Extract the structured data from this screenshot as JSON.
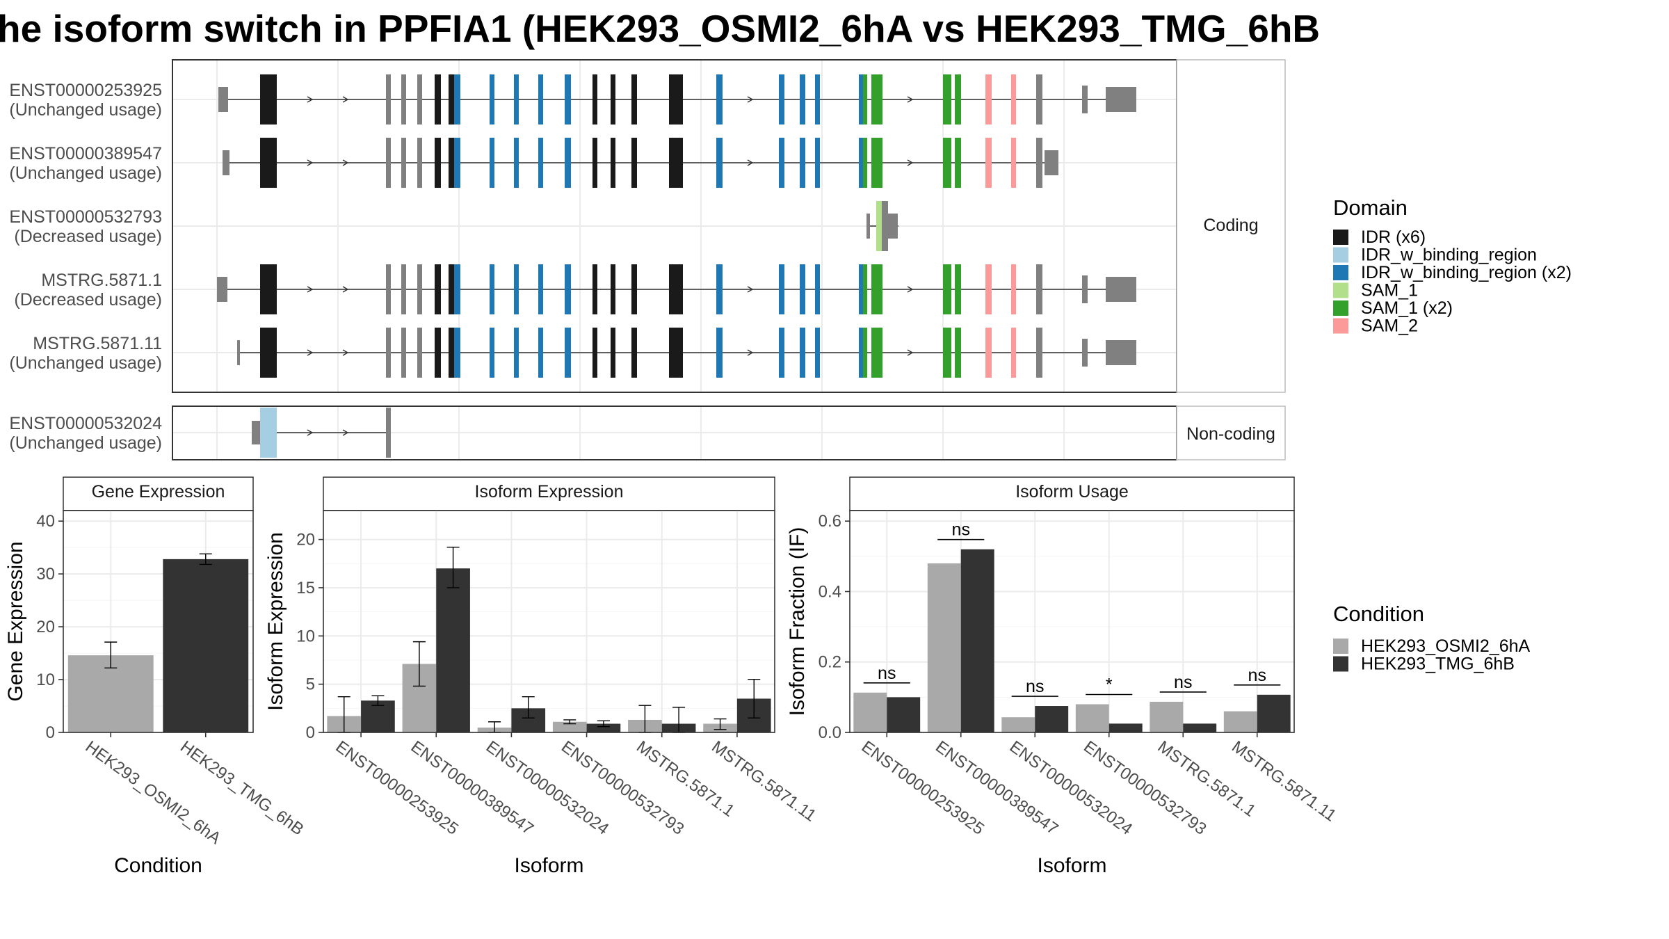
{
  "title": "he isoform switch in PPFIA1 (HEK293_OSMI2_6hA vs HEK293_TMG_6hB",
  "colors": {
    "IDR": "#1a1a1a",
    "IDR_w_binding_region": "#a6cee3",
    "IDR_w_binding_region_x2": "#1f78b4",
    "SAM_1": "#b2df8a",
    "SAM_1_x2": "#33a02c",
    "SAM_2": "#fb9a99",
    "utr": "#808080",
    "cond_a": "#a9a9a9",
    "cond_b": "#333333"
  },
  "structure": {
    "facets": [
      "Coding",
      "Non-coding"
    ],
    "transcripts": [
      {
        "id": "ENST00000253925",
        "usage": "(Unchanged usage)",
        "facet": "Coding"
      },
      {
        "id": "ENST00000389547",
        "usage": "(Unchanged usage)",
        "facet": "Coding"
      },
      {
        "id": "ENST00000532793",
        "usage": "(Decreased usage)",
        "facet": "Coding"
      },
      {
        "id": "MSTRG.5871.1",
        "usage": "(Decreased usage)",
        "facet": "Coding"
      },
      {
        "id": "MSTRG.5871.11",
        "usage": "(Unchanged usage)",
        "facet": "Coding"
      },
      {
        "id": "ENST00000532024",
        "usage": "(Unchanged usage)",
        "facet": "Non-coding"
      }
    ]
  },
  "legend_domain": {
    "title": "Domain",
    "items": [
      {
        "label": "IDR (x6)",
        "color_key": "IDR"
      },
      {
        "label": "IDR_w_binding_region",
        "color_key": "IDR_w_binding_region"
      },
      {
        "label": "IDR_w_binding_region (x2)",
        "color_key": "IDR_w_binding_region_x2"
      },
      {
        "label": "SAM_1",
        "color_key": "SAM_1"
      },
      {
        "label": "SAM_1 (x2)",
        "color_key": "SAM_1_x2"
      },
      {
        "label": "SAM_2",
        "color_key": "SAM_2"
      }
    ]
  },
  "legend_condition": {
    "title": "Condition",
    "items": [
      {
        "label": "HEK293_OSMI2_6hA",
        "color_key": "cond_a"
      },
      {
        "label": "HEK293_TMG_6hB",
        "color_key": "cond_b"
      }
    ]
  },
  "chart_data": [
    {
      "type": "bar",
      "title": "Gene Expression",
      "xlabel": "Condition",
      "ylabel": "Gene Expression",
      "ylim": [
        0,
        42
      ],
      "yticks": [
        0,
        10,
        20,
        30,
        40
      ],
      "categories": [
        "HEK293_OSMI2_6hA",
        "HEK293_TMG_6hB"
      ],
      "values": [
        14.6,
        32.8
      ],
      "err_low": [
        12.2,
        31.8
      ],
      "err_high": [
        17.1,
        33.8
      ]
    },
    {
      "type": "bar",
      "title": "Isoform Expression",
      "xlabel": "Isoform",
      "ylabel": "Isoform Expression",
      "ylim": [
        0,
        23
      ],
      "yticks": [
        0,
        5,
        10,
        15,
        20
      ],
      "categories": [
        "ENST00000253925",
        "ENST00000389547",
        "ENST00000532024",
        "ENST00000532793",
        "MSTRG.5871.1",
        "MSTRG.5871.11"
      ],
      "series": [
        {
          "name": "HEK293_OSMI2_6hA",
          "values": [
            1.7,
            7.1,
            0.5,
            1.1,
            1.3,
            0.9
          ],
          "err_low": [
            0.0,
            4.8,
            0.0,
            0.9,
            0.0,
            0.3
          ],
          "err_high": [
            3.7,
            9.4,
            1.1,
            1.3,
            2.8,
            1.4
          ]
        },
        {
          "name": "HEK293_TMG_6hB",
          "values": [
            3.3,
            17.0,
            2.5,
            0.9,
            0.9,
            3.5
          ],
          "err_low": [
            2.8,
            15.0,
            1.5,
            0.6,
            0.0,
            1.5
          ],
          "err_high": [
            3.8,
            19.2,
            3.7,
            1.2,
            2.6,
            5.5
          ]
        }
      ]
    },
    {
      "type": "bar",
      "title": "Isoform Usage",
      "xlabel": "Isoform",
      "ylabel": "Isoform Fraction (IF)",
      "ylim": [
        0,
        0.63
      ],
      "yticks": [
        0.0,
        0.2,
        0.4,
        0.6
      ],
      "ytick_labels": [
        "0.0",
        "0.2",
        "0.4",
        "0.6"
      ],
      "categories": [
        "ENST00000253925",
        "ENST00000389547",
        "ENST00000532024",
        "ENST00000532793",
        "MSTRG.5871.1",
        "MSTRG.5871.11"
      ],
      "series": [
        {
          "name": "HEK293_OSMI2_6hA",
          "values": [
            0.113,
            0.48,
            0.043,
            0.08,
            0.087,
            0.06
          ]
        },
        {
          "name": "HEK293_TMG_6hB",
          "values": [
            0.1,
            0.52,
            0.075,
            0.025,
            0.025,
            0.107
          ]
        }
      ],
      "significance": [
        "ns",
        "ns",
        "ns",
        "*",
        "ns",
        "ns"
      ]
    }
  ]
}
